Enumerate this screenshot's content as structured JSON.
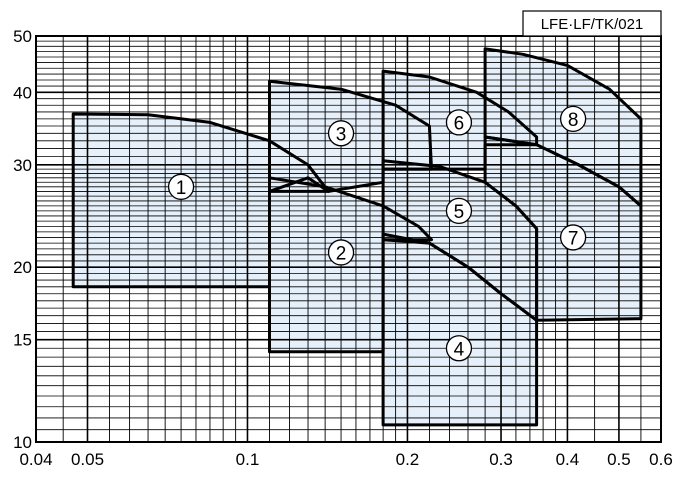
{
  "chart_data": {
    "type": "area",
    "title": "LFE·LF/TK/021",
    "xlabel": "",
    "ylabel": "",
    "x_scale": "log",
    "y_scale": "log",
    "xlim": [
      0.04,
      0.6
    ],
    "ylim": [
      10,
      50
    ],
    "grid": true,
    "x_ticks": [
      {
        "value": 0.04,
        "label": "0.04"
      },
      {
        "value": 0.05,
        "label": "0.05"
      },
      {
        "value": 0.1,
        "label": "0.1"
      },
      {
        "value": 0.2,
        "label": "0.2"
      },
      {
        "value": 0.3,
        "label": "0.3"
      },
      {
        "value": 0.4,
        "label": "0.4"
      },
      {
        "value": 0.5,
        "label": "0.5"
      },
      {
        "value": 0.6,
        "label": "0.6"
      }
    ],
    "y_ticks": [
      {
        "value": 10,
        "label": "10"
      },
      {
        "value": 15,
        "label": "15"
      },
      {
        "value": 20,
        "label": "20"
      },
      {
        "value": 30,
        "label": "30"
      },
      {
        "value": 40,
        "label": "40"
      },
      {
        "value": 50,
        "label": "50"
      }
    ],
    "regions": [
      {
        "label": "1",
        "label_at": [
          0.075,
          27.5
        ],
        "outline": [
          [
            0.047,
            18.5
          ],
          [
            0.047,
            36.7
          ],
          [
            0.065,
            36.6
          ],
          [
            0.085,
            35.5
          ],
          [
            0.11,
            33.0
          ],
          [
            0.13,
            30.0
          ],
          [
            0.142,
            27.0
          ],
          [
            0.11,
            27.0
          ],
          [
            0.11,
            18.5
          ]
        ]
      },
      {
        "label": "2",
        "label_at": [
          0.15,
          21.2
        ],
        "outline": [
          [
            0.11,
            14.3
          ],
          [
            0.11,
            28.5
          ],
          [
            0.14,
            27.5
          ],
          [
            0.18,
            25.5
          ],
          [
            0.21,
            23.5
          ],
          [
            0.222,
            22.3
          ],
          [
            0.18,
            22.3
          ],
          [
            0.18,
            14.3
          ]
        ]
      },
      {
        "label": "3",
        "label_at": [
          0.15,
          34.0
        ],
        "outline": [
          [
            0.11,
            27.0
          ],
          [
            0.11,
            41.8
          ],
          [
            0.15,
            40.5
          ],
          [
            0.19,
            38.0
          ],
          [
            0.22,
            35.0
          ],
          [
            0.222,
            29.5
          ],
          [
            0.18,
            29.5
          ],
          [
            0.18,
            28.0
          ],
          [
            0.142,
            27.0
          ],
          [
            0.13,
            28.5
          ]
        ]
      },
      {
        "label": "4",
        "label_at": [
          0.25,
          14.5
        ],
        "outline": [
          [
            0.18,
            10.7
          ],
          [
            0.18,
            22.8
          ],
          [
            0.22,
            22.0
          ],
          [
            0.26,
            20.0
          ],
          [
            0.3,
            18.0
          ],
          [
            0.35,
            16.2
          ],
          [
            0.35,
            10.7
          ]
        ]
      },
      {
        "label": "5",
        "label_at": [
          0.25,
          25.0
        ],
        "outline": [
          [
            0.18,
            22.3
          ],
          [
            0.18,
            30.5
          ],
          [
            0.23,
            29.8
          ],
          [
            0.28,
            28.0
          ],
          [
            0.32,
            25.5
          ],
          [
            0.35,
            23.3
          ],
          [
            0.35,
            16.2
          ],
          [
            0.3,
            18.0
          ],
          [
            0.26,
            20.0
          ],
          [
            0.22,
            22.0
          ]
        ]
      },
      {
        "label": "6",
        "label_at": [
          0.25,
          35.5
        ],
        "outline": [
          [
            0.18,
            29.5
          ],
          [
            0.18,
            43.5
          ],
          [
            0.22,
            42.5
          ],
          [
            0.27,
            40.0
          ],
          [
            0.31,
            37.0
          ],
          [
            0.35,
            33.5
          ],
          [
            0.35,
            32.5
          ],
          [
            0.28,
            32.5
          ],
          [
            0.28,
            29.5
          ]
        ]
      },
      {
        "label": "7",
        "label_at": [
          0.41,
          22.5
        ],
        "outline": [
          [
            0.35,
            16.2
          ],
          [
            0.35,
            23.3
          ],
          [
            0.32,
            25.5
          ],
          [
            0.28,
            28.0
          ],
          [
            0.28,
            33.5
          ],
          [
            0.35,
            32.5
          ],
          [
            0.42,
            30.0
          ],
          [
            0.5,
            27.5
          ],
          [
            0.55,
            25.5
          ],
          [
            0.55,
            16.3
          ]
        ]
      },
      {
        "label": "8",
        "label_at": [
          0.41,
          36.0
        ],
        "outline": [
          [
            0.28,
            33.5
          ],
          [
            0.28,
            47.5
          ],
          [
            0.33,
            46.5
          ],
          [
            0.4,
            44.5
          ],
          [
            0.48,
            40.5
          ],
          [
            0.55,
            36.0
          ],
          [
            0.55,
            25.5
          ],
          [
            0.5,
            27.5
          ],
          [
            0.42,
            30.0
          ],
          [
            0.35,
            32.5
          ]
        ]
      }
    ],
    "colors": {
      "fill": "#e6f0fa",
      "outline": "#000000",
      "grid": "#000000"
    }
  }
}
